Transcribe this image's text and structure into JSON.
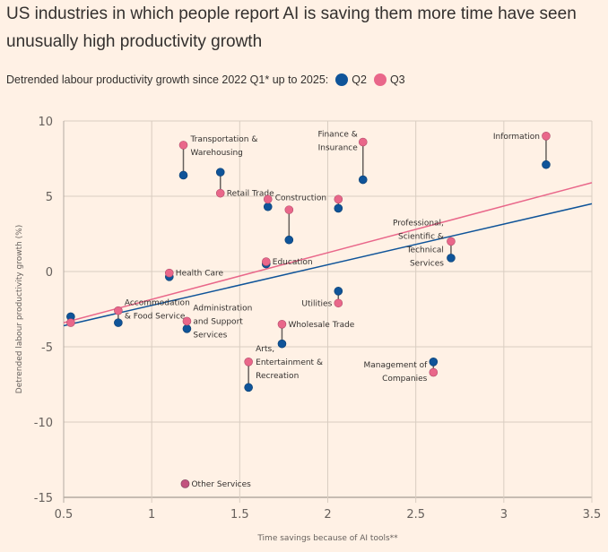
{
  "chart_data": {
    "type": "scatter",
    "title": "US industries in which people report AI is saving them more time have seen unusually high productivity growth",
    "subtitle": "Detrended labour productivity growth since 2022 Q1* up to 2025:",
    "xlabel": "Time savings because of AI tools**",
    "ylabel": "Detrended labour productivity growth (%)",
    "xlim": [
      0.5,
      3.5
    ],
    "ylim": [
      -15,
      10
    ],
    "xticks": [
      "0.5",
      "1",
      "1.5",
      "2",
      "2.5",
      "3",
      "3.5"
    ],
    "xtick_values": [
      0.5,
      1,
      1.5,
      2,
      2.5,
      3,
      3.5
    ],
    "yticks": [
      "10",
      "5",
      "0",
      "-5",
      "-10",
      "-15"
    ],
    "ytick_values": [
      10,
      5,
      0,
      -5,
      -10,
      -15
    ],
    "grid": true,
    "legend": [
      {
        "name": "Q2",
        "color": "#0f5499"
      },
      {
        "name": "Q3",
        "color": "#e9678a"
      }
    ],
    "points": [
      {
        "label": "Transportation & Warehousing",
        "x": 1.18,
        "q2": 6.4,
        "q3": 8.4
      },
      {
        "label": "Retail Trade",
        "x": 1.39,
        "q2": 6.6,
        "q3": 5.2
      },
      {
        "label": "Construction",
        "x": 1.66,
        "q2": 4.3,
        "q3": 4.8
      },
      {
        "label": "",
        "x": 1.78,
        "q2": 2.1,
        "q3": 4.1
      },
      {
        "label": "",
        "x": 2.06,
        "q2": 4.2,
        "q3": 4.8
      },
      {
        "label": "Finance & Insurance",
        "x": 2.2,
        "q2": 6.1,
        "q3": 8.6
      },
      {
        "label": "Information",
        "x": 3.24,
        "q2": 7.1,
        "q3": 9.0
      },
      {
        "label": "Professional, Scientific & Technical Services",
        "x": 2.7,
        "q2": 0.9,
        "q3": 2.0
      },
      {
        "label": "Education",
        "x": 1.65,
        "q2": 0.5,
        "q3": 0.65
      },
      {
        "label": "Health Care",
        "x": 1.1,
        "q2": -0.35,
        "q3": -0.1
      },
      {
        "label": "Accommodation & Food Service",
        "x": 0.81,
        "q2": -3.4,
        "q3": -2.6
      },
      {
        "label": "",
        "x": 0.54,
        "q2": -3.0,
        "q3": -3.4
      },
      {
        "label": "Administration and Support Services",
        "x": 1.2,
        "q2": -3.8,
        "q3": -3.3
      },
      {
        "label": "Utilities",
        "x": 2.06,
        "q2": -1.3,
        "q3": -2.1
      },
      {
        "label": "Wholesale Trade",
        "x": 1.74,
        "q2": -4.8,
        "q3": -3.5
      },
      {
        "label": "Arts, Entertainment & Recreation",
        "x": 1.55,
        "q2": -7.7,
        "q3": -6.0
      },
      {
        "label": "Management of Companies",
        "x": 2.6,
        "q2": -6.0,
        "q3": -6.7
      },
      {
        "label": "Other Services",
        "x": 1.19,
        "q2": -14.1,
        "q3": -14.1
      }
    ],
    "trendlines": [
      {
        "name": "Q2",
        "from": [
          0.5,
          -3.6
        ],
        "to": [
          3.5,
          4.5
        ]
      },
      {
        "name": "Q3",
        "from": [
          0.5,
          -3.4
        ],
        "to": [
          3.5,
          5.9
        ]
      }
    ]
  }
}
